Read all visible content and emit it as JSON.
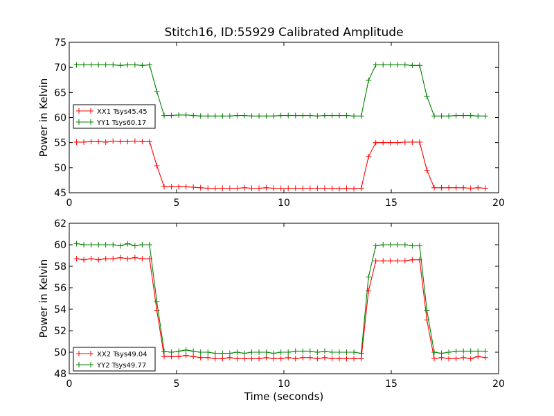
{
  "figure_title": "Stitch16, ID:55929 Calibrated Amplitude",
  "chart_data": [
    {
      "type": "line",
      "title": "Stitch16, ID:55929 Calibrated Amplitude",
      "xlabel": "",
      "ylabel": "Power in Kelvin",
      "xlim": [
        0,
        20
      ],
      "ylim": [
        45,
        75
      ],
      "xticks": [
        0,
        5,
        10,
        15,
        20
      ],
      "yticks": [
        45,
        50,
        55,
        60,
        65,
        70,
        75
      ],
      "legend_position": "center-left",
      "grid": false,
      "x": [
        0.34,
        0.68,
        1.02,
        1.36,
        1.7,
        2.04,
        2.38,
        2.72,
        3.06,
        3.4,
        3.74,
        4.08,
        4.42,
        4.76,
        5.1,
        5.44,
        5.78,
        6.12,
        6.46,
        6.8,
        7.14,
        7.48,
        7.82,
        8.16,
        8.5,
        8.84,
        9.18,
        9.52,
        9.86,
        10.2,
        10.54,
        10.88,
        11.22,
        11.56,
        11.9,
        12.24,
        12.58,
        12.92,
        13.26,
        13.6,
        13.94,
        14.28,
        14.62,
        14.96,
        15.3,
        15.64,
        15.98,
        16.32,
        16.66,
        17.0,
        17.34,
        17.68,
        18.02,
        18.36,
        18.7,
        19.04,
        19.38
      ],
      "series": [
        {
          "name": "XX1 Tsys45.45",
          "color": "#ff0000",
          "values": [
            55.1,
            55.1,
            55.2,
            55.2,
            55.1,
            55.3,
            55.2,
            55.2,
            55.3,
            55.2,
            55.2,
            50.4,
            46.2,
            46.2,
            46.2,
            46.2,
            46.1,
            46.0,
            45.9,
            45.9,
            45.9,
            45.9,
            45.9,
            46.0,
            45.9,
            45.9,
            46.0,
            45.9,
            45.9,
            45.9,
            45.9,
            45.9,
            45.9,
            45.9,
            45.9,
            45.9,
            45.8,
            45.9,
            45.8,
            45.9,
            52.2,
            55.0,
            55.0,
            55.0,
            55.0,
            55.1,
            55.1,
            55.1,
            49.5,
            46.0,
            46.0,
            46.0,
            46.0,
            46.0,
            45.9,
            46.0,
            45.9
          ]
        },
        {
          "name": "YY1 Tsys60.17",
          "color": "#008000",
          "values": [
            70.5,
            70.5,
            70.5,
            70.5,
            70.5,
            70.5,
            70.4,
            70.5,
            70.5,
            70.4,
            70.5,
            65.2,
            60.4,
            60.4,
            60.5,
            60.5,
            60.4,
            60.3,
            60.3,
            60.3,
            60.3,
            60.3,
            60.4,
            60.4,
            60.3,
            60.3,
            60.3,
            60.3,
            60.4,
            60.4,
            60.4,
            60.4,
            60.4,
            60.3,
            60.4,
            60.4,
            60.4,
            60.4,
            60.3,
            60.3,
            67.4,
            70.5,
            70.5,
            70.5,
            70.5,
            70.5,
            70.4,
            70.4,
            64.2,
            60.3,
            60.3,
            60.3,
            60.4,
            60.4,
            60.4,
            60.3,
            60.3
          ]
        }
      ]
    },
    {
      "type": "line",
      "title": "",
      "xlabel": "Time (seconds)",
      "ylabel": "Power in Kelvin",
      "xlim": [
        0,
        20
      ],
      "ylim": [
        48,
        62
      ],
      "xticks": [
        0,
        5,
        10,
        15,
        20
      ],
      "yticks": [
        48,
        50,
        52,
        54,
        56,
        58,
        60,
        62
      ],
      "legend_position": "lower-left",
      "grid": false,
      "x": [
        0.34,
        0.68,
        1.02,
        1.36,
        1.7,
        2.04,
        2.38,
        2.72,
        3.06,
        3.4,
        3.74,
        4.08,
        4.42,
        4.76,
        5.1,
        5.44,
        5.78,
        6.12,
        6.46,
        6.8,
        7.14,
        7.48,
        7.82,
        8.16,
        8.5,
        8.84,
        9.18,
        9.52,
        9.86,
        10.2,
        10.54,
        10.88,
        11.22,
        11.56,
        11.9,
        12.24,
        12.58,
        12.92,
        13.26,
        13.6,
        13.94,
        14.28,
        14.62,
        14.96,
        15.3,
        15.64,
        15.98,
        16.32,
        16.66,
        17.0,
        17.34,
        17.68,
        18.02,
        18.36,
        18.7,
        19.04,
        19.38
      ],
      "series": [
        {
          "name": "XX2 Tsys49.04",
          "color": "#ff0000",
          "values": [
            58.7,
            58.6,
            58.7,
            58.6,
            58.7,
            58.7,
            58.8,
            58.7,
            58.8,
            58.7,
            58.7,
            53.9,
            49.6,
            49.6,
            49.6,
            49.7,
            49.6,
            49.5,
            49.5,
            49.4,
            49.4,
            49.5,
            49.4,
            49.4,
            49.4,
            49.4,
            49.5,
            49.4,
            49.4,
            49.5,
            49.4,
            49.5,
            49.5,
            49.4,
            49.5,
            49.4,
            49.4,
            49.4,
            49.4,
            49.4,
            55.7,
            58.5,
            58.5,
            58.5,
            58.5,
            58.5,
            58.6,
            58.6,
            53.0,
            49.4,
            49.5,
            49.4,
            49.4,
            49.5,
            49.4,
            49.6,
            49.5
          ]
        },
        {
          "name": "YY2 Tsys49.77",
          "color": "#008000",
          "values": [
            60.1,
            60.0,
            60.0,
            60.0,
            60.0,
            60.0,
            59.9,
            60.1,
            59.9,
            60.0,
            60.0,
            54.7,
            50.1,
            50.0,
            50.1,
            50.2,
            50.1,
            50.0,
            50.0,
            49.9,
            49.9,
            49.9,
            50.0,
            49.9,
            50.0,
            50.0,
            50.0,
            49.9,
            50.0,
            50.0,
            50.1,
            50.1,
            50.1,
            50.0,
            50.1,
            50.0,
            50.0,
            50.0,
            50.0,
            49.9,
            57.0,
            59.9,
            60.0,
            60.0,
            60.0,
            60.0,
            59.9,
            59.9,
            53.9,
            50.0,
            49.9,
            50.0,
            50.1,
            50.1,
            50.1,
            50.1,
            50.1
          ]
        }
      ]
    }
  ]
}
